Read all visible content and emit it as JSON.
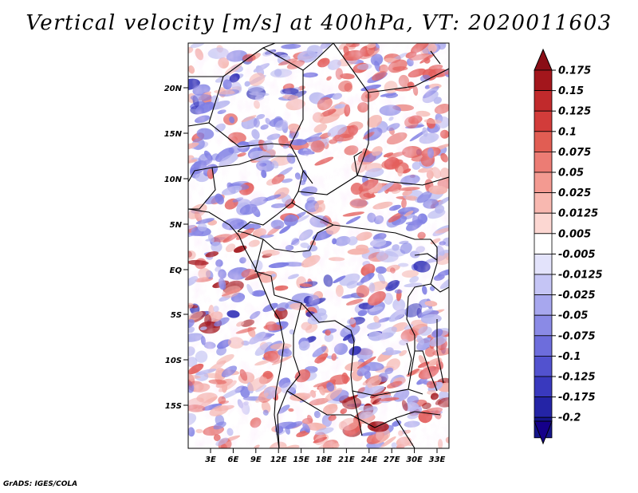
{
  "title": "Vertical velocity [m/s] at 400hPa, VT: 2020011603",
  "credit": "GrADS: IGES/COLA",
  "lat_labels": [
    "20N",
    "15N",
    "10N",
    "5N",
    "EQ",
    "5S",
    "10S",
    "15S"
  ],
  "lon_labels": [
    "3E",
    "6E",
    "9E",
    "12E",
    "15E",
    "18E",
    "21E",
    "24E",
    "27E",
    "30E",
    "33E"
  ],
  "colorbar": {
    "labels": [
      "0.175",
      "0.15",
      "0.125",
      "0.1",
      "0.075",
      "0.05",
      "0.025",
      "0.0125",
      "0.005",
      "-0.005",
      "-0.0125",
      "-0.025",
      "-0.05",
      "-0.075",
      "-0.1",
      "-0.125",
      "-0.175",
      "-0.2"
    ],
    "colors": [
      "#a3161c",
      "#c12a2c",
      "#d23c3a",
      "#e15d53",
      "#ec7c74",
      "#f39a91",
      "#f8b8b0",
      "#fcd7d2",
      "#ffffff",
      "#e3e3fb",
      "#c5c5f5",
      "#a7a7ee",
      "#8a8ae6",
      "#6d6ddc",
      "#5252cf",
      "#3939be",
      "#2424a6",
      "#15158a"
    ],
    "top_arrow_color": "#8a0e16",
    "bottom_arrow_color": "#15008a"
  },
  "field_colors": {
    "strong_up": "#a3161c",
    "up": "#e35f5c",
    "weak_up": "#f4b1ab",
    "neutral": "#ffffff",
    "weak_down": "#b8b8f0",
    "down": "#7d7de3",
    "strong_down": "#3535b8"
  }
}
